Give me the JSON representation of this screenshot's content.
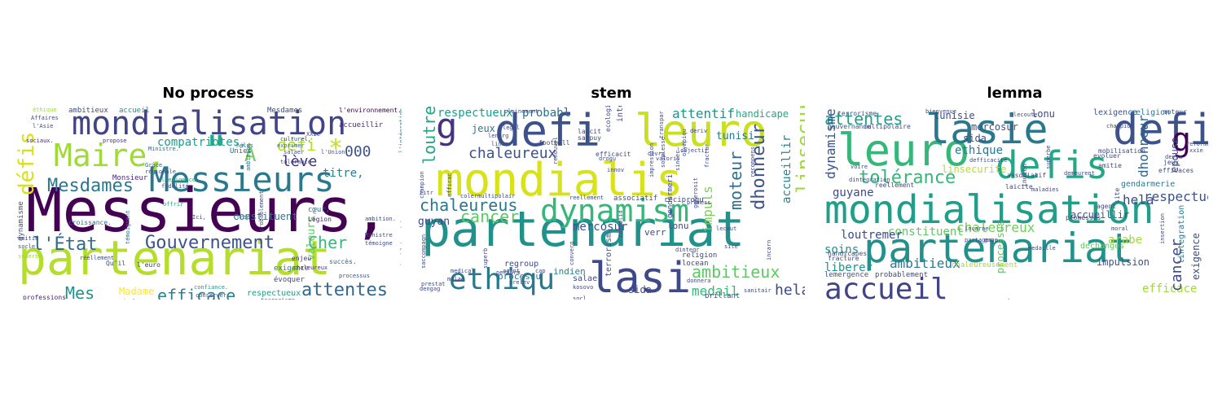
{
  "panels": [
    {
      "title": "No process",
      "words": [
        {
          "t": "Messieurs,",
          "c": "#440154"
        },
        {
          "t": "partenariat",
          "c": "#b5de2b"
        },
        {
          "t": "mondialisation",
          "c": "#414487"
        },
        {
          "t": "Messieurs",
          "c": "#2a788e"
        },
        {
          "t": "Maire,",
          "c": "#a0da39"
        },
        {
          "t": "\"",
          "c": "#22a884"
        },
        {
          "t": "défis",
          "c": "#d8e219"
        },
        {
          "t": "Mesdames",
          "c": "#2a788e"
        },
        {
          "t": "Gouvernement",
          "c": "#3b528b"
        },
        {
          "t": "l'État",
          "c": "#31688e"
        },
        {
          "t": "efficace",
          "c": "#26828e"
        },
        {
          "t": "attentes",
          "c": "#31688e"
        },
        {
          "t": "défi",
          "c": "#b5de2b"
        },
        {
          "t": "lève",
          "c": "#46327e"
        },
        {
          "t": "000",
          "c": "#3b528b"
        },
        {
          "t": "Cher",
          "c": "#35b779"
        },
        {
          "t": "compatriotes,",
          "c": "#1f9e89"
        },
        {
          "t": "À",
          "c": "#6ece58"
        },
        {
          "t": "*",
          "c": "#c2df23"
        },
        {
          "t": "Mes",
          "c": "#21918c"
        },
        {
          "t": "constituent",
          "c": "#2a788e"
        },
        {
          "t": "Madame",
          "c": "#fde725"
        },
        {
          "t": "respectueux",
          "c": "#1f9e89"
        },
        {
          "t": "ambitieux",
          "c": "#3e4989"
        },
        {
          "t": "accueil",
          "c": "#21918c"
        },
        {
          "t": "Mesdames",
          "c": "#3e4989"
        },
        {
          "t": "dynamisme",
          "c": "#3b528b"
        },
        {
          "t": "civilisations",
          "c": "#86d549"
        },
        {
          "t": "titre,",
          "c": "#26828e"
        },
        {
          "t": "valeurs,",
          "c": "#5ec962"
        },
        {
          "t": "l'environnement.",
          "c": "#440154"
        },
        {
          "t": "Monsieur",
          "c": "#482878"
        },
        {
          "t": "exigence",
          "c": "#287c8e"
        },
        {
          "t": "évoquer",
          "c": "#3e4989"
        },
        {
          "t": "professions",
          "c": "#481f70"
        },
        {
          "t": "croissance.",
          "c": "#2e6e8e"
        },
        {
          "t": "terrorisme",
          "c": "#404688"
        },
        {
          "t": "Légion",
          "c": "#482475"
        },
        {
          "t": "accueillir",
          "c": "#482878"
        },
        {
          "t": "Unies",
          "c": "#2c718e"
        },
        {
          "t": "cœur,",
          "c": "#31688e"
        },
        {
          "t": "enjeu",
          "c": "#443a83"
        },
        {
          "t": "succès.",
          "c": "#31688e"
        },
        {
          "t": "Qu'il",
          "c": "#3b528b"
        },
        {
          "t": "l'euro",
          "c": "#472d7b"
        },
        {
          "t": "confiance.",
          "c": "#1f988b"
        },
        {
          "t": "résolument",
          "c": "#3e4989"
        },
        {
          "t": "éthique",
          "c": "#a0da39"
        },
        {
          "t": "Affaires",
          "c": "#3e4989"
        },
        {
          "t": "l'Asie",
          "c": "#3e4989"
        },
        {
          "t": "sociaux.",
          "c": "#482878"
        },
        {
          "t": "propose",
          "c": "#46327e"
        },
        {
          "t": "Ministre.",
          "c": "#31688e"
        },
        {
          "t": "Grâce",
          "c": "#34618d"
        },
        {
          "t": "régionale",
          "c": "#3b528b"
        },
        {
          "t": "offrir",
          "c": "#20a486"
        },
        {
          "t": "Ici,",
          "c": "#3e4989"
        },
        {
          "t": "Trop",
          "c": "#2e6e8e"
        },
        {
          "t": "hélas",
          "c": "#2e6e8e"
        },
        {
          "t": "exprimer",
          "c": "#2e6e8e"
        },
        {
          "t": "culturel,",
          "c": "#3b528b"
        },
        {
          "t": "XXIe",
          "c": "#3e4989"
        },
        {
          "t": "l'intégration",
          "c": "#21918c"
        },
        {
          "t": "salaer",
          "c": "#3b528b"
        },
        {
          "t": "tolérance",
          "c": "#404688"
        },
        {
          "t": "l'Union",
          "c": "#3b528b"
        },
        {
          "t": "témoigne",
          "c": "#3e4989"
        },
        {
          "t": "ambition.",
          "c": "#3e4989"
        },
        {
          "t": "Ministre",
          "c": "#3e4989"
        },
        {
          "t": "processus",
          "c": "#3b528b"
        },
        {
          "t": "chaleureux",
          "c": "#46327e"
        },
        {
          "t": "réellement",
          "c": "#3e4989"
        },
        {
          "t": "amitié",
          "c": "#3e4989"
        },
        {
          "t": "socle",
          "c": "#3e4989"
        },
        {
          "t": "superbe",
          "c": "#a0da39"
        },
        {
          "t": "mondialisation.",
          "c": "#3e4989"
        },
        {
          "t": "conserver",
          "c": "#3e4989"
        },
        {
          "t": "ambition",
          "c": "#2e6e8e"
        },
        {
          "t": "témoignent",
          "c": "#2c718e"
        },
        {
          "t": "probablement",
          "c": "#3e4989"
        },
        {
          "t": "l'exigence",
          "c": "#20a486"
        },
        {
          "t": "fidélité",
          "c": "#3b528b"
        }
      ]
    },
    {
      "title": "stem",
      "words": [
        {
          "t": "partenariat",
          "c": "#21918c"
        },
        {
          "t": "mondialis",
          "c": "#d8e219"
        },
        {
          "t": "defi",
          "c": "#3b528b"
        },
        {
          "t": "leuro",
          "c": "#c8e020"
        },
        {
          "t": "g",
          "c": "#46327e"
        },
        {
          "t": "dynamism",
          "c": "#35b779"
        },
        {
          "t": "lasi",
          "c": "#3e4989"
        },
        {
          "t": "ethiqu",
          "c": "#2a788e"
        },
        {
          "t": "chaleureus",
          "c": "#2a788e"
        },
        {
          "t": "cancer",
          "c": "#5ec962"
        },
        {
          "t": "loutrem",
          "c": "#22a884"
        },
        {
          "t": "chaleureux",
          "c": "#3b528b"
        },
        {
          "t": "respectueux",
          "c": "#1f9e89"
        },
        {
          "t": "probabl",
          "c": "#2e6e8e"
        },
        {
          "t": "attentif",
          "c": "#21918c"
        },
        {
          "t": "handicape",
          "c": "#22a884"
        },
        {
          "t": "ambitieux",
          "c": "#5ec962"
        },
        {
          "t": "dhonneur",
          "c": "#3b528b"
        },
        {
          "t": "moteur",
          "c": "#2c718e"
        },
        {
          "t": "accueillir",
          "c": "#26828e"
        },
        {
          "t": "linsecurit",
          "c": "#a0da39"
        },
        {
          "t": "hela",
          "c": "#3e4989"
        },
        {
          "t": "medail",
          "c": "#35b779"
        },
        {
          "t": "impuls",
          "c": "#7ad151"
        },
        {
          "t": "guyan",
          "c": "#3e4989"
        },
        {
          "t": "mercosur",
          "c": "#3b528b"
        },
        {
          "t": "jeux",
          "c": "#2a788e"
        },
        {
          "t": "sida",
          "c": "#3e4989"
        },
        {
          "t": "terrorism",
          "c": "#3b528b"
        },
        {
          "t": "ambassadeur",
          "c": "#3e4989"
        },
        {
          "t": "processu",
          "c": "#2a788e"
        },
        {
          "t": "tunisi",
          "c": "#2a788e"
        },
        {
          "t": "verr",
          "c": "#3e4989"
        },
        {
          "t": "lonu",
          "c": "#3e4989"
        },
        {
          "t": "indien",
          "c": "#26828e"
        },
        {
          "t": "regroup",
          "c": "#3e4989"
        },
        {
          "t": "salaer",
          "c": "#3e4989"
        },
        {
          "t": "gendarmeri",
          "c": "#3e4989"
        },
        {
          "t": "religion",
          "c": "#3e4989"
        },
        {
          "t": "locean",
          "c": "#3e4989"
        },
        {
          "t": "brillant",
          "c": "#3e4989"
        },
        {
          "t": "reciproqu",
          "c": "#3e4989"
        },
        {
          "t": "associatif",
          "c": "#3e4989"
        },
        {
          "t": "football",
          "c": "#3e4989"
        },
        {
          "t": "laicit",
          "c": "#3e4989"
        },
        {
          "t": "sappuy",
          "c": "#3e4989"
        },
        {
          "t": "efficacit",
          "c": "#3e4989"
        },
        {
          "t": "ecologiqu",
          "c": "#3e4989"
        },
        {
          "t": "integr",
          "c": "#3e4989"
        },
        {
          "t": "lenerg",
          "c": "#3e4989"
        },
        {
          "t": "linsert",
          "c": "#3e4989"
        },
        {
          "t": "legal",
          "c": "#3e4989"
        },
        {
          "t": "champion",
          "c": "#3e4989"
        },
        {
          "t": "efficac",
          "c": "#3e4989"
        },
        {
          "t": "titr",
          "c": "#3e4989"
        },
        {
          "t": "colermultipolair",
          "c": "#3e4989"
        },
        {
          "t": "reellement",
          "c": "#3e4989"
        },
        {
          "t": "agent",
          "c": "#3e4989"
        },
        {
          "t": "cap",
          "c": "#3e4989"
        },
        {
          "t": "medical",
          "c": "#3e4989"
        },
        {
          "t": "malad",
          "c": "#3e4989"
        },
        {
          "t": "prestat",
          "c": "#3e4989"
        },
        {
          "t": "superb",
          "c": "#3e4989"
        },
        {
          "t": "perform",
          "c": "#3e4989"
        },
        {
          "t": "prelev",
          "c": "#3e4989"
        },
        {
          "t": "kosovo",
          "c": "#3e4989"
        },
        {
          "t": "socl",
          "c": "#3e4989"
        },
        {
          "t": "saccompagn",
          "c": "#3e4989"
        },
        {
          "t": "dengag",
          "c": "#3e4989"
        },
        {
          "t": "converg",
          "c": "#3e4989"
        },
        {
          "t": "consolid",
          "c": "#3e4989"
        },
        {
          "t": "innov",
          "c": "#3e4989"
        },
        {
          "t": "renouvel",
          "c": "#3e4989"
        },
        {
          "t": "drogu",
          "c": "#3e4989"
        },
        {
          "t": "transpar",
          "c": "#3e4989"
        },
        {
          "t": "lobjectif",
          "c": "#3e4989"
        },
        {
          "t": "deriv",
          "c": "#3e4989"
        },
        {
          "t": "devra",
          "c": "#3e4989"
        },
        {
          "t": "impression",
          "c": "#3e4989"
        },
        {
          "t": "souplesse",
          "c": "#3e4989"
        },
        {
          "t": "valoris",
          "c": "#3e4989"
        },
        {
          "t": "sincer",
          "c": "#3e4989"
        },
        {
          "t": "olympiqu",
          "c": "#3e4989"
        },
        {
          "t": "fractur",
          "c": "#3e4989"
        },
        {
          "t": "generosit",
          "c": "#3e4989"
        },
        {
          "t": "donnera",
          "c": "#3e4989"
        },
        {
          "t": "sanitair",
          "c": "#3e4989"
        },
        {
          "t": "lecout",
          "c": "#3e4989"
        },
        {
          "t": "site",
          "c": "#3e4989"
        },
        {
          "t": "recompens",
          "c": "#3e4989"
        },
        {
          "t": "dintegr",
          "c": "#3e4989"
        },
        {
          "t": "promess",
          "c": "#3e4989"
        },
        {
          "t": "incarn",
          "c": "#3e4989"
        },
        {
          "t": "pleinement",
          "c": "#3e4989"
        }
      ]
    },
    {
      "title": "lemma",
      "words": [
        {
          "t": "mondialisation",
          "c": "#1f9e89"
        },
        {
          "t": "partenariat",
          "c": "#21918c"
        },
        {
          "t": "leuro",
          "c": "#35b779"
        },
        {
          "t": "lasie",
          "c": "#2a788e"
        },
        {
          "t": "defi",
          "c": "#3b528b"
        },
        {
          "t": "g",
          "c": "#440154"
        },
        {
          "t": "defis",
          "c": "#22a884"
        },
        {
          "t": "accueil",
          "c": "#414487"
        },
        {
          "t": "attentes",
          "c": "#1f9e89"
        },
        {
          "t": "tolérance",
          "c": "#35b779"
        },
        {
          "t": "dynamisme",
          "c": "#3b528b"
        },
        {
          "t": "ethique",
          "c": "#2a788e"
        },
        {
          "t": "linsecurite",
          "c": "#b5de2b"
        },
        {
          "t": "guyane",
          "c": "#3e4989"
        },
        {
          "t": "chaleureux",
          "c": "#6ece58"
        },
        {
          "t": "constituent",
          "c": "#5ec962"
        },
        {
          "t": "loutremer",
          "c": "#3e4989"
        },
        {
          "t": "arabe",
          "c": "#a0da39"
        },
        {
          "t": "ambitieux",
          "c": "#2a788e"
        },
        {
          "t": "soins",
          "c": "#21918c"
        },
        {
          "t": "liberer",
          "c": "#21918c"
        },
        {
          "t": "tunisie",
          "c": "#3e4989"
        },
        {
          "t": "mercosur",
          "c": "#3b528b"
        },
        {
          "t": "sida",
          "c": "#3e4989"
        },
        {
          "t": "lonu",
          "c": "#3e4989"
        },
        {
          "t": "lexigence",
          "c": "#3b528b"
        },
        {
          "t": "religion",
          "c": "#2a788e"
        },
        {
          "t": "moteur",
          "c": "#3b528b"
        },
        {
          "t": "gendarmerie",
          "c": "#2a788e"
        },
        {
          "t": "hela",
          "c": "#3e4989"
        },
        {
          "t": "dhonneur",
          "c": "#31688e"
        },
        {
          "t": "efficace",
          "c": "#a0da39"
        },
        {
          "t": "epouse",
          "c": "#3e4989"
        },
        {
          "t": "cancer",
          "c": "#3e4989"
        },
        {
          "t": "respectueux",
          "c": "#3b528b"
        },
        {
          "t": "accueillir",
          "c": "#3b528b"
        },
        {
          "t": "impulsion",
          "c": "#3b528b"
        },
        {
          "t": "exigence",
          "c": "#3e4989"
        },
        {
          "t": "lintegration",
          "c": "#2a788e"
        },
        {
          "t": "processus",
          "c": "#5ec962"
        },
        {
          "t": "dechanges",
          "c": "#5ec962"
        },
        {
          "t": "lemergence",
          "c": "#3b528b"
        },
        {
          "t": "probablement",
          "c": "#3e4989"
        },
        {
          "t": "handicapes",
          "c": "#3e4989"
        },
        {
          "t": "fracture",
          "c": "#3e4989"
        },
        {
          "t": "chaleureusement",
          "c": "#a0da39"
        },
        {
          "t": "terrorisme",
          "c": "#3e4989"
        },
        {
          "t": "multipolaire",
          "c": "#3e4989"
        },
        {
          "t": "gouvernance",
          "c": "#3b528b"
        },
        {
          "t": "reellement",
          "c": "#3e4989"
        },
        {
          "t": "evoluer",
          "c": "#3e4989"
        },
        {
          "t": "jeux",
          "c": "#3e4989"
        },
        {
          "t": "efficaces",
          "c": "#3e4989"
        },
        {
          "t": "mobilisation",
          "c": "#3e4989"
        },
        {
          "t": "amitie",
          "c": "#3e4989"
        },
        {
          "t": "laicite",
          "c": "#3e4989"
        },
        {
          "t": "associatif",
          "c": "#3e4989"
        },
        {
          "t": "site",
          "c": "#3e4989"
        },
        {
          "t": "agent",
          "c": "#3e4989"
        },
        {
          "t": "promesses",
          "c": "#3e4989"
        },
        {
          "t": "indien",
          "c": "#3e4989"
        },
        {
          "t": "conserver",
          "c": "#5ec962"
        },
        {
          "t": "football",
          "c": "#3e4989"
        },
        {
          "t": "resolument",
          "c": "#3e4989"
        },
        {
          "t": "partager",
          "c": "#3e4989"
        },
        {
          "t": "gage",
          "c": "#3e4989"
        },
        {
          "t": "moral",
          "c": "#3e4989"
        },
        {
          "t": "insertion",
          "c": "#3e4989"
        },
        {
          "t": "reforme",
          "c": "#3e4989"
        },
        {
          "t": "devra",
          "c": "#3e4989"
        },
        {
          "t": "xxie",
          "c": "#3e4989"
        },
        {
          "t": "champion",
          "c": "#3e4989"
        },
        {
          "t": "bienvenue",
          "c": "#3e4989"
        },
        {
          "t": "lecoute",
          "c": "#3e4989"
        },
        {
          "t": "defficacite",
          "c": "#3e4989"
        },
        {
          "t": "superbe",
          "c": "#3e4989"
        },
        {
          "t": "demeurent",
          "c": "#3e4989"
        },
        {
          "t": "maladies",
          "c": "#3e4989"
        },
        {
          "t": "voire",
          "c": "#3e4989"
        },
        {
          "t": "dintegration",
          "c": "#3e4989"
        },
        {
          "t": "incarne",
          "c": "#3e4989"
        },
        {
          "t": "medaille",
          "c": "#3e4989"
        }
      ]
    }
  ]
}
